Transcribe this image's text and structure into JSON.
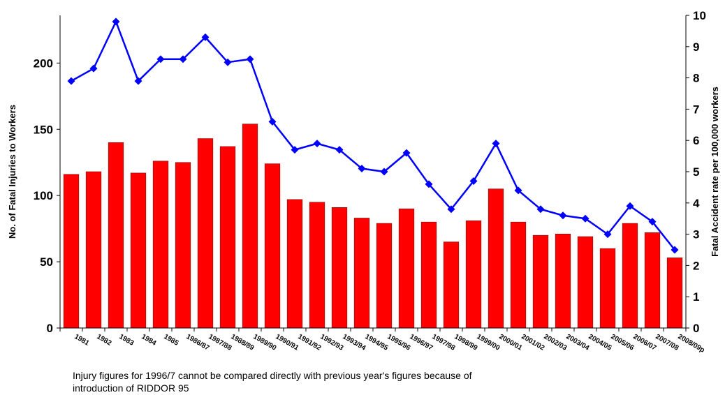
{
  "chart_data": {
    "type": "bar-line",
    "categories": [
      "1981",
      "1982",
      "1983",
      "1984",
      "1985",
      "1986/87",
      "1987/88",
      "1988/89",
      "1989/90",
      "1990/91",
      "1991/92",
      "1992/93",
      "1993/94",
      "1994/95",
      "1995/96",
      "1996/97",
      "1997/98",
      "1998/99",
      "1999/00",
      "2000/01",
      "2001/02",
      "2002/03",
      "2003/04",
      "2004/05",
      "2005/06",
      "2006/07",
      "2007/08",
      "2008/09p"
    ],
    "series": [
      {
        "type": "bar",
        "color": "#ff0000",
        "values": [
          116,
          118,
          140,
          117,
          126,
          125,
          143,
          137,
          154,
          124,
          97,
          95,
          91,
          83,
          79,
          90,
          80,
          65,
          81,
          105,
          80,
          70,
          71,
          69,
          60,
          79,
          72,
          53
        ]
      },
      {
        "type": "line",
        "axis": "y2",
        "color": "#0000ff",
        "values": [
          7.9,
          8.3,
          9.8,
          7.9,
          8.6,
          8.6,
          9.3,
          8.5,
          8.6,
          6.6,
          5.7,
          5.9,
          5.7,
          5.1,
          5.0,
          5.6,
          4.6,
          3.8,
          4.7,
          5.9,
          4.4,
          3.8,
          3.6,
          3.5,
          3.0,
          3.9,
          3.4,
          2.5
        ]
      }
    ],
    "ylabel": "No. of Fatal Injuries to Workers",
    "y2label": "Fatal Accident rate per 100,000 workers",
    "ylim": [
      0,
      236
    ],
    "yticks": [
      0,
      50,
      100,
      150,
      200
    ],
    "y2lim": [
      0,
      10
    ],
    "y2ticks": [
      0,
      1,
      2,
      3,
      4,
      5,
      6,
      7,
      8,
      9,
      10
    ],
    "note": [
      "Injury figures for 1996/7 cannot be compared directly with previous year's figures because of",
      "introduction of RIDDOR 95"
    ]
  }
}
